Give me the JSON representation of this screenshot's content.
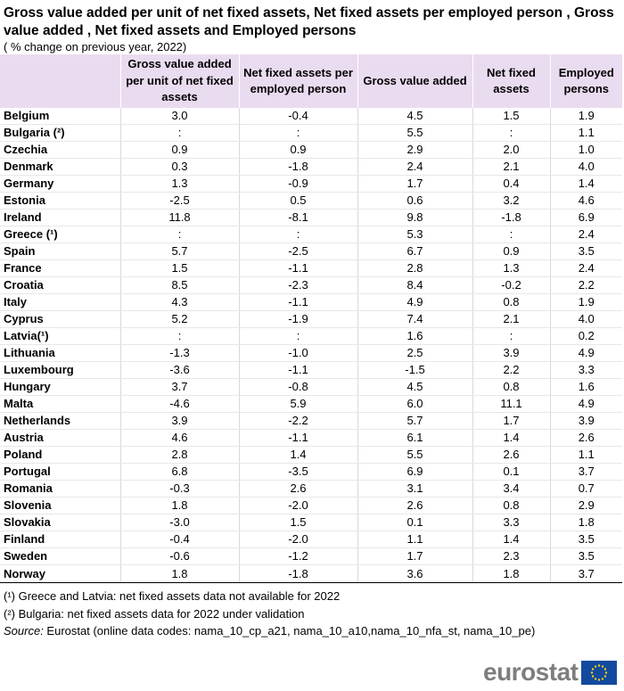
{
  "title": "Gross value added per unit of net fixed assets, Net fixed assets per employed person , Gross value added , Net fixed assets and Employed persons",
  "subtitle": "( % change on previous year,  2022)",
  "columns": [
    "Gross value added per unit of net fixed assets",
    "Net fixed assets per employed person",
    "Gross value added",
    "Net fixed assets",
    "Employed persons"
  ],
  "rows": [
    {
      "country": "Belgium",
      "values": [
        "3.0",
        "-0.4",
        "4.5",
        "1.5",
        "1.9"
      ]
    },
    {
      "country": "Bulgaria (²)",
      "values": [
        ":",
        ":",
        "5.5",
        ":",
        "1.1"
      ]
    },
    {
      "country": "Czechia",
      "values": [
        "0.9",
        "0.9",
        "2.9",
        "2.0",
        "1.0"
      ]
    },
    {
      "country": "Denmark",
      "values": [
        "0.3",
        "-1.8",
        "2.4",
        "2.1",
        "4.0"
      ]
    },
    {
      "country": "Germany",
      "values": [
        "1.3",
        "-0.9",
        "1.7",
        "0.4",
        "1.4"
      ]
    },
    {
      "country": "Estonia",
      "values": [
        "-2.5",
        "0.5",
        "0.6",
        "3.2",
        "4.6"
      ]
    },
    {
      "country": "Ireland",
      "values": [
        "11.8",
        "-8.1",
        "9.8",
        "-1.8",
        "6.9"
      ]
    },
    {
      "country": "Greece (¹)",
      "values": [
        ":",
        ":",
        "5.3",
        ":",
        "2.4"
      ]
    },
    {
      "country": "Spain",
      "values": [
        "5.7",
        "-2.5",
        "6.7",
        "0.9",
        "3.5"
      ]
    },
    {
      "country": "France",
      "values": [
        "1.5",
        "-1.1",
        "2.8",
        "1.3",
        "2.4"
      ]
    },
    {
      "country": "Croatia",
      "values": [
        "8.5",
        "-2.3",
        "8.4",
        "-0.2",
        "2.2"
      ]
    },
    {
      "country": "Italy",
      "values": [
        "4.3",
        "-1.1",
        "4.9",
        "0.8",
        "1.9"
      ]
    },
    {
      "country": "Cyprus",
      "values": [
        "5.2",
        "-1.9",
        "7.4",
        "2.1",
        "4.0"
      ]
    },
    {
      "country": "Latvia(¹)",
      "values": [
        ":",
        ":",
        "1.6",
        ":",
        "0.2"
      ]
    },
    {
      "country": "Lithuania",
      "values": [
        "-1.3",
        "-1.0",
        "2.5",
        "3.9",
        "4.9"
      ]
    },
    {
      "country": "Luxembourg",
      "values": [
        "-3.6",
        "-1.1",
        "-1.5",
        "2.2",
        "3.3"
      ]
    },
    {
      "country": "Hungary",
      "values": [
        "3.7",
        "-0.8",
        "4.5",
        "0.8",
        "1.6"
      ]
    },
    {
      "country": "Malta",
      "values": [
        "-4.6",
        "5.9",
        "6.0",
        "11.1",
        "4.9"
      ]
    },
    {
      "country": "Netherlands",
      "values": [
        "3.9",
        "-2.2",
        "5.7",
        "1.7",
        "3.9"
      ]
    },
    {
      "country": "Austria",
      "values": [
        "4.6",
        "-1.1",
        "6.1",
        "1.4",
        "2.6"
      ]
    },
    {
      "country": "Poland",
      "values": [
        "2.8",
        "1.4",
        "5.5",
        "2.6",
        "1.1"
      ]
    },
    {
      "country": "Portugal",
      "values": [
        "6.8",
        "-3.5",
        "6.9",
        "0.1",
        "3.7"
      ]
    },
    {
      "country": "Romania",
      "values": [
        "-0.3",
        "2.6",
        "3.1",
        "3.4",
        "0.7"
      ]
    },
    {
      "country": "Slovenia",
      "values": [
        "1.8",
        "-2.0",
        "2.6",
        "0.8",
        "2.9"
      ]
    },
    {
      "country": "Slovakia",
      "values": [
        "-3.0",
        "1.5",
        "0.1",
        "3.3",
        "1.8"
      ]
    },
    {
      "country": "Finland",
      "values": [
        "-0.4",
        "-2.0",
        "1.1",
        "1.4",
        "3.5"
      ]
    },
    {
      "country": "Sweden",
      "values": [
        "-0.6",
        "-1.2",
        "1.7",
        "2.3",
        "3.5"
      ]
    },
    {
      "country": "Norway",
      "values": [
        "1.8",
        "-1.8",
        "3.6",
        "1.8",
        "3.7"
      ]
    }
  ],
  "notes": {
    "note1": "(¹) Greece and Latvia:  net fixed assets data not available for 2022",
    "note2": "(²) Bulgaria: net fixed assets data for 2022 under validation",
    "source_label": "Source:",
    "source_text": " Eurostat (online data codes: nama_10_cp_a21, nama_10_a10,nama_10_nfa_st, nama_10_pe)"
  },
  "logo": {
    "text": "eurostat",
    "flag_color": "#134a9e",
    "star_color": "#f7d117"
  }
}
